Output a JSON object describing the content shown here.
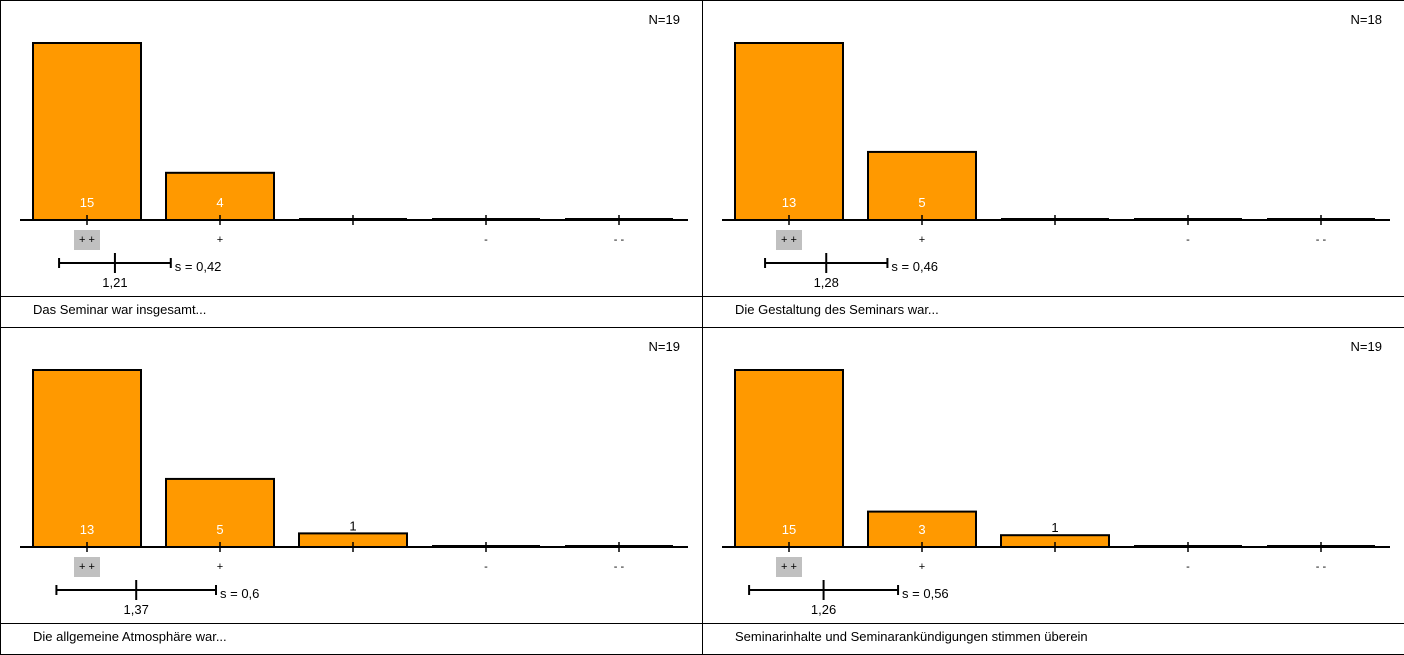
{
  "colors": {
    "bar_fill": "#ff9900",
    "bar_stroke": "#000000",
    "label_on_bar": "#ffffff",
    "label_above_bar": "#000000",
    "highlight": "#c0c0c0"
  },
  "chart_data": [
    {
      "type": "bar",
      "n_label": "N=19",
      "categories": [
        "+ +",
        "+",
        "",
        "-",
        "- -"
      ],
      "highlight_category": 0,
      "values": [
        15,
        4,
        0,
        0,
        0
      ],
      "value_labels": [
        "15",
        "4",
        "",
        "",
        ""
      ],
      "ylim": [
        0,
        15
      ],
      "mean": 1.21,
      "mean_label": "1,21",
      "sd": 0.42,
      "sd_label": "s = 0,42",
      "caption": "Das Seminar war insgesamt..."
    },
    {
      "type": "bar",
      "n_label": "N=18",
      "categories": [
        "+ +",
        "+",
        "",
        "-",
        "- -"
      ],
      "highlight_category": 0,
      "values": [
        13,
        5,
        0,
        0,
        0
      ],
      "value_labels": [
        "13",
        "5",
        "",
        "",
        ""
      ],
      "ylim": [
        0,
        13
      ],
      "mean": 1.28,
      "mean_label": "1,28",
      "sd": 0.46,
      "sd_label": "s = 0,46",
      "caption": "Die Gestaltung des Seminars war..."
    },
    {
      "type": "bar",
      "n_label": "N=19",
      "categories": [
        "+ +",
        "+",
        "",
        "-",
        "- -"
      ],
      "highlight_category": 0,
      "values": [
        13,
        5,
        1,
        0,
        0
      ],
      "value_labels": [
        "13",
        "5",
        "1",
        "",
        ""
      ],
      "ylim": [
        0,
        13
      ],
      "mean": 1.37,
      "mean_label": "1,37",
      "sd": 0.6,
      "sd_label": "s = 0,6",
      "caption": "Die allgemeine Atmosphäre war..."
    },
    {
      "type": "bar",
      "n_label": "N=19",
      "categories": [
        "+ +",
        "+",
        "",
        "-",
        "- -"
      ],
      "highlight_category": 0,
      "values": [
        15,
        3,
        1,
        0,
        0
      ],
      "value_labels": [
        "15",
        "3",
        "1",
        "",
        ""
      ],
      "ylim": [
        0,
        15
      ],
      "mean": 1.26,
      "mean_label": "1,26",
      "sd": 0.56,
      "sd_label": "s = 0,56",
      "caption": "Seminarinhalte und Seminarankündigungen stimmen überein"
    }
  ]
}
